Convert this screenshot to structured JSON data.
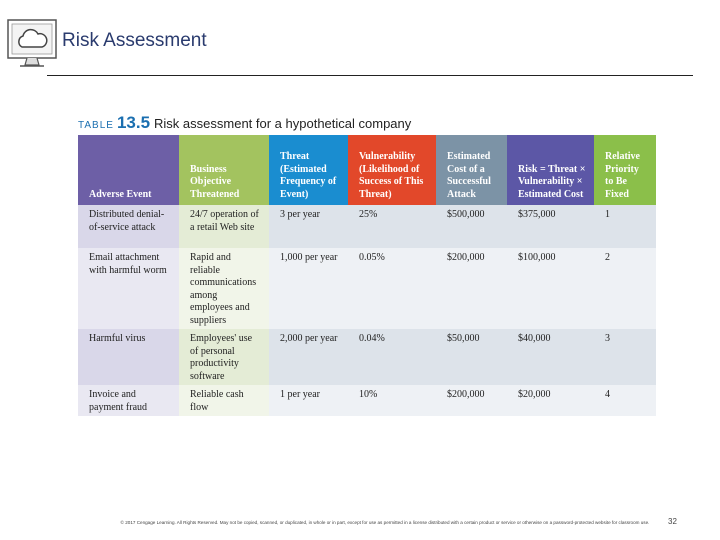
{
  "header": {
    "title": "Risk Assessment"
  },
  "table": {
    "caption_label": "TABLE",
    "caption_number": "13.5",
    "caption_text": "Risk assessment for a hypothetical company",
    "columns": [
      "Adverse Event",
      "Business Objective Threatened",
      "Threat (Estimated Frequency of Event)",
      "Vulnerability (Likelihood of Success of This Threat)",
      "Estimated Cost of a Successful Attack",
      "Risk = Threat × Vulnerability × Estimated Cost",
      "Relative Priority to Be Fixed"
    ],
    "rows": [
      [
        "Distributed denial-of-service attack",
        "24/7 operation of a retail Web site",
        "3 per year",
        "25%",
        "$500,000",
        "$375,000",
        "1"
      ],
      [
        "Email attachment with harmful worm",
        "Rapid and reliable communications among employees and suppliers",
        "1,000 per year",
        "0.05%",
        "$200,000",
        "$100,000",
        "2"
      ],
      [
        "Harmful virus",
        "Employees' use of personal productivity software",
        "2,000 per year",
        "0.04%",
        "$50,000",
        "$40,000",
        "3"
      ],
      [
        "Invoice and payment fraud",
        "Reliable cash flow",
        "1 per year",
        "10%",
        "$200,000",
        "$20,000",
        "4"
      ]
    ]
  },
  "footer": {
    "copyright": "© 2017 Cengage Learning. All Rights Reserved. May not be copied, scanned, or duplicated, in whole or in part, except for use as permitted in a license distributed with a certain product or service or otherwise on a password-protected website for classroom use.",
    "page_number": "32"
  }
}
